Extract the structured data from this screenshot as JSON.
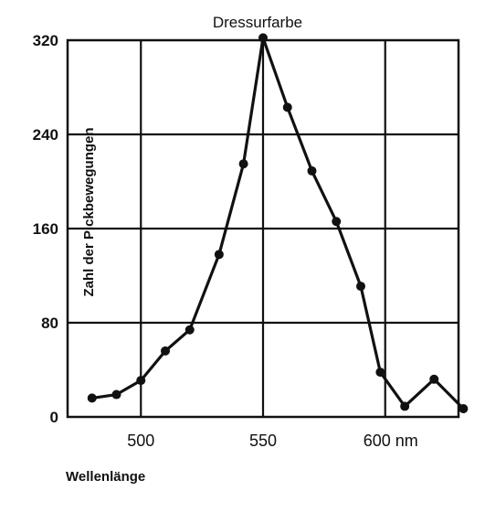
{
  "chart_data": {
    "type": "line",
    "title": "Dressurfarbe",
    "xlabel": "Wellenlänge",
    "ylabel": "Zahl der Pickbewegungen",
    "xlim": [
      470,
      630
    ],
    "ylim": [
      0,
      320
    ],
    "xticks": [
      500,
      550,
      600
    ],
    "xtick_labels": [
      "500",
      "550",
      "600 nm"
    ],
    "yticks": [
      0,
      80,
      160,
      240,
      320
    ],
    "ytick_labels": [
      "0",
      "80",
      "160",
      "240",
      "320"
    ],
    "grid": true,
    "series": [
      {
        "x": [
          480,
          490,
          500,
          510,
          520,
          532,
          542,
          550,
          560,
          570,
          580,
          590,
          598,
          608,
          620,
          632
        ],
        "y": [
          16,
          19,
          31,
          56,
          74,
          138,
          215,
          322,
          263,
          209,
          166,
          111,
          38,
          9,
          32,
          7
        ]
      }
    ],
    "colors": {
      "line": "#111111",
      "grid": "#111111",
      "background": "#ffffff"
    }
  }
}
